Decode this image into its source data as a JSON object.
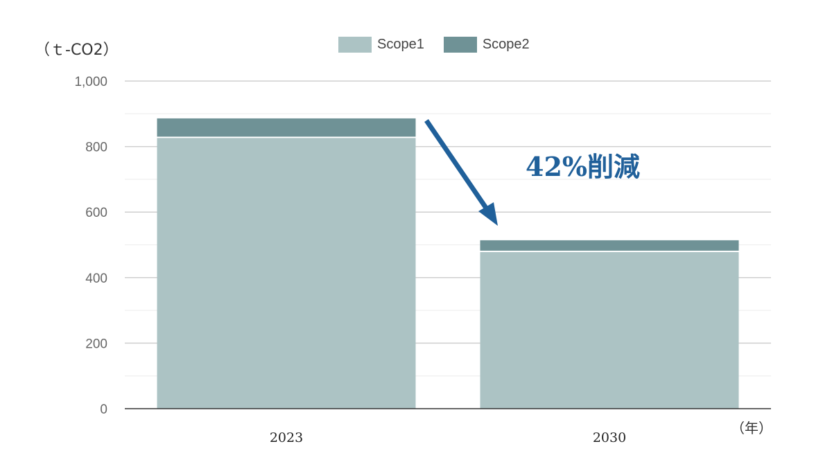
{
  "chart_data": {
    "type": "bar",
    "stacked": true,
    "categories": [
      "2023",
      "2030"
    ],
    "series": [
      {
        "name": "Scope1",
        "values": [
          826,
          478
        ],
        "color": "#acc3c4"
      },
      {
        "name": "Scope2",
        "values": [
          60,
          36
        ],
        "color": "#6f9296"
      }
    ],
    "ylabel": "（ｔ-CO2）",
    "xlabel": "（年）",
    "ylim": [
      0,
      1000
    ],
    "yticks": [
      "0",
      "200",
      "400",
      "600",
      "800",
      "1,000"
    ],
    "grid": true,
    "legend_position": "top",
    "annotation": {
      "text": "42%削減",
      "color": "#20609a"
    }
  }
}
